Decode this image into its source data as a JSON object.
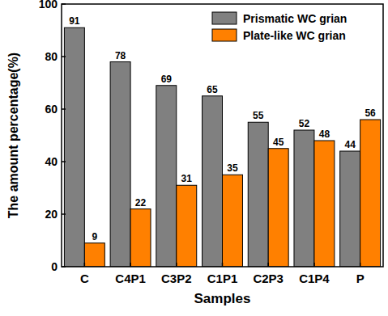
{
  "chart_data": {
    "type": "bar",
    "x_label": "Samples",
    "y_label": "The amount percentage(%)",
    "categories": [
      "C",
      "C4P1",
      "C3P2",
      "C1P1",
      "C2P3",
      "C1P4",
      "P"
    ],
    "series": [
      {
        "name": "Prismatic WC grian",
        "color": "#808080",
        "values": [
          91,
          78,
          69,
          65,
          55,
          52,
          44
        ]
      },
      {
        "name": "Plate-like WC grian",
        "color": "#ff8000",
        "values": [
          9,
          22,
          31,
          35,
          45,
          48,
          56
        ]
      }
    ],
    "ylim": [
      0,
      100
    ],
    "yticks": [
      0,
      20,
      40,
      60,
      80,
      100
    ],
    "grid": false,
    "legend": "upper right",
    "data_labels": true
  }
}
